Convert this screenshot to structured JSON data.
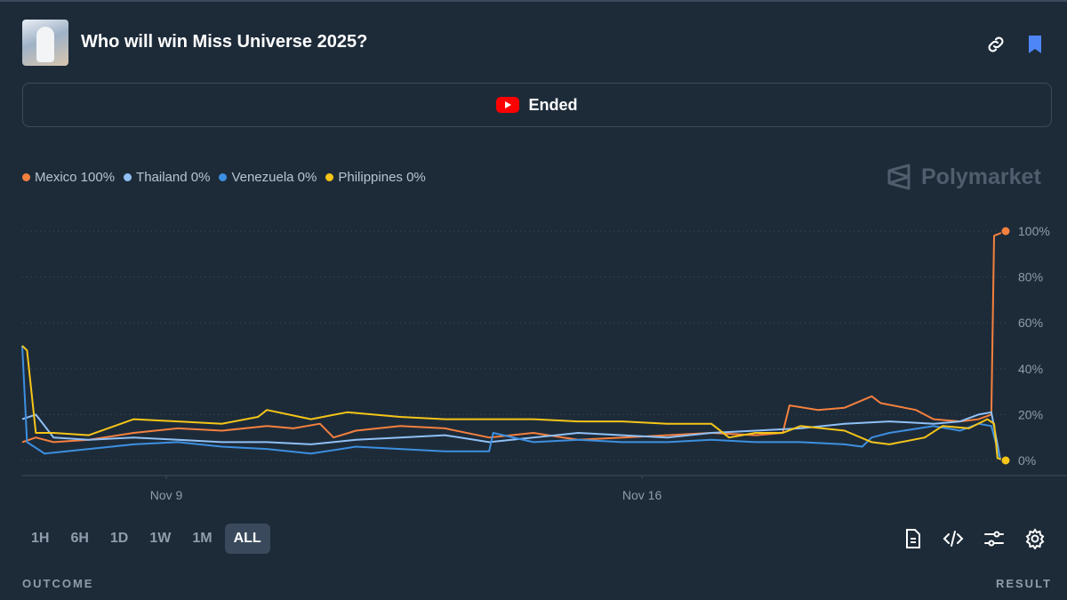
{
  "header": {
    "title": "Who will win Miss Universe 2025?"
  },
  "status": "Ended",
  "brand": "Polymarket",
  "chart_data": {
    "type": "line",
    "series": [
      {
        "name": "Mexico 100%",
        "color": "#f5803e",
        "end_dot": true,
        "x": [
          6.88,
          7.08,
          7.34,
          7.86,
          8.52,
          9.17,
          9.82,
          10.48,
          10.87,
          11.26,
          11.46,
          11.79,
          12.44,
          13.1,
          13.75,
          14.4,
          15.06,
          15.71,
          16.37,
          17.02,
          17.67,
          18.07,
          18.17,
          18.59,
          18.98,
          19.38,
          19.51,
          20.03,
          20.29,
          20.68,
          20.95,
          21.14,
          21.18,
          21.35
        ],
        "values": [
          8,
          10,
          8,
          9,
          12,
          14,
          13,
          15,
          14,
          16,
          10,
          13,
          15,
          14,
          10,
          12,
          9,
          10,
          11,
          12,
          11,
          12,
          24,
          22,
          23,
          28,
          25,
          22,
          18,
          17,
          18,
          20,
          98,
          100
        ]
      },
      {
        "name": "Thailand 0%",
        "color": "#90c0f5",
        "end_dot": false,
        "x": [
          6.88,
          7.08,
          7.34,
          7.86,
          8.52,
          9.17,
          9.82,
          10.48,
          11.13,
          11.79,
          12.44,
          13.1,
          13.75,
          14.4,
          15.06,
          15.71,
          16.37,
          17.02,
          17.67,
          18.33,
          18.98,
          19.64,
          20.29,
          20.68,
          20.95,
          21.14,
          21.27,
          21.35
        ],
        "values": [
          18,
          20,
          10,
          9,
          10,
          9,
          8,
          8,
          7,
          9,
          10,
          11,
          8,
          10,
          12,
          11,
          10,
          12,
          13,
          14,
          16,
          17,
          16,
          17,
          20,
          21,
          0.5,
          0
        ]
      },
      {
        "name": "Venezuela 0%",
        "color": "#3d8fe0",
        "end_dot": false,
        "x": [
          6.88,
          6.95,
          7.21,
          7.86,
          8.52,
          9.17,
          9.82,
          10.48,
          11.13,
          11.79,
          12.44,
          13.1,
          13.75,
          13.81,
          14.4,
          15.06,
          15.71,
          16.37,
          17.02,
          17.67,
          18.33,
          18.98,
          19.24,
          19.38,
          19.64,
          20.29,
          20.68,
          20.95,
          21.14,
          21.27,
          21.35
        ],
        "values": [
          50,
          8,
          3,
          5,
          7,
          8,
          6,
          5,
          3,
          6,
          5,
          4,
          4,
          12,
          8,
          9,
          8,
          8,
          9,
          8,
          8,
          7,
          6,
          10,
          12,
          15,
          13,
          16,
          15,
          0.5,
          0
        ]
      },
      {
        "name": "Philippines 0%",
        "color": "#f5c518",
        "end_dot": true,
        "x": [
          6.88,
          6.95,
          7.08,
          7.34,
          7.86,
          8.52,
          9.17,
          9.82,
          10.35,
          10.48,
          11.13,
          11.66,
          12.44,
          13.1,
          13.75,
          14.4,
          15.06,
          15.71,
          16.37,
          17.02,
          17.28,
          17.67,
          18.07,
          18.33,
          18.98,
          19.38,
          19.64,
          20.16,
          20.42,
          20.81,
          21.08,
          21.18,
          21.23,
          21.35
        ],
        "values": [
          50,
          48,
          12,
          12,
          11,
          18,
          17,
          16,
          19,
          22,
          18,
          21,
          19,
          18,
          18,
          18,
          17,
          17,
          16,
          16,
          10,
          12,
          12,
          15,
          13,
          8,
          7,
          10,
          15,
          14,
          18,
          16,
          1,
          0
        ]
      }
    ],
    "xlim": [
      6.88,
      21.35
    ],
    "xticks": [
      {
        "value": 9,
        "label": "Nov 9"
      },
      {
        "value": 16,
        "label": "Nov 16"
      }
    ],
    "ylim": [
      0,
      100
    ],
    "yticks": [
      {
        "value": 0,
        "label": "0%"
      },
      {
        "value": 20,
        "label": "20%"
      },
      {
        "value": 40,
        "label": "40%"
      },
      {
        "value": 60,
        "label": "60%"
      },
      {
        "value": 80,
        "label": "80%"
      },
      {
        "value": 100,
        "label": "100%"
      }
    ],
    "grid": true
  },
  "range_buttons": [
    "1H",
    "6H",
    "1D",
    "1W",
    "1M",
    "ALL"
  ],
  "selected_range": "ALL",
  "footer": {
    "left": "OUTCOME",
    "right": "RESULT"
  }
}
